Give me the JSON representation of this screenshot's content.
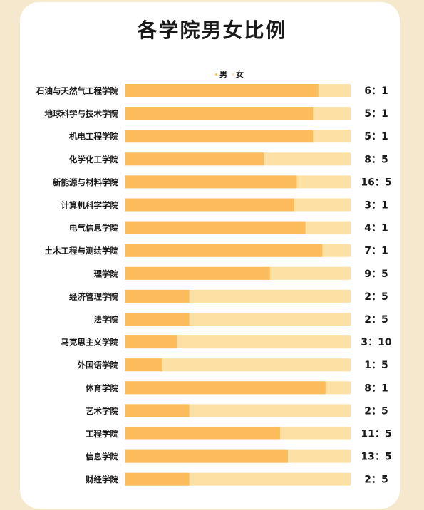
{
  "colors": {
    "male": "#fdbc5c",
    "female": "#fde0a4",
    "background": "#f6e8cc",
    "card": "#ffffff"
  },
  "chart_data": {
    "type": "bar",
    "stacked": true,
    "orientation": "horizontal",
    "normalized": true,
    "title": "各学院男女比例",
    "legend": [
      "男",
      "女"
    ],
    "legend_position": "top",
    "categories": [
      "石油与天然气工程学院",
      "地球科学与技术学院",
      "机电工程学院",
      "化学化工学院",
      "新能源与材料学院",
      "计算机科学学院",
      "电气信息学院",
      "土木工程与测绘学院",
      "理学院",
      "经济管理学院",
      "法学院",
      "马克思主义学院",
      "外国语学院",
      "体育学院",
      "艺术学院",
      "工程学院",
      "信息学院",
      "财经学院"
    ],
    "ratio_labels": [
      "6：1",
      "5：1",
      "5：1",
      "8：5",
      "16：5",
      "3：1",
      "4：1",
      "7：1",
      "9：5",
      "2：5",
      "2：5",
      "3：10",
      "1：5",
      "8：1",
      "2：5",
      "11：5",
      "13：5",
      "2：5"
    ],
    "series": [
      {
        "name": "男",
        "values": [
          6,
          5,
          5,
          8,
          16,
          3,
          4,
          7,
          9,
          2,
          2,
          3,
          1,
          8,
          2,
          11,
          13,
          2
        ]
      },
      {
        "name": "女",
        "values": [
          1,
          1,
          1,
          5,
          5,
          1,
          1,
          1,
          5,
          5,
          5,
          10,
          5,
          1,
          5,
          5,
          5,
          5
        ]
      }
    ]
  }
}
